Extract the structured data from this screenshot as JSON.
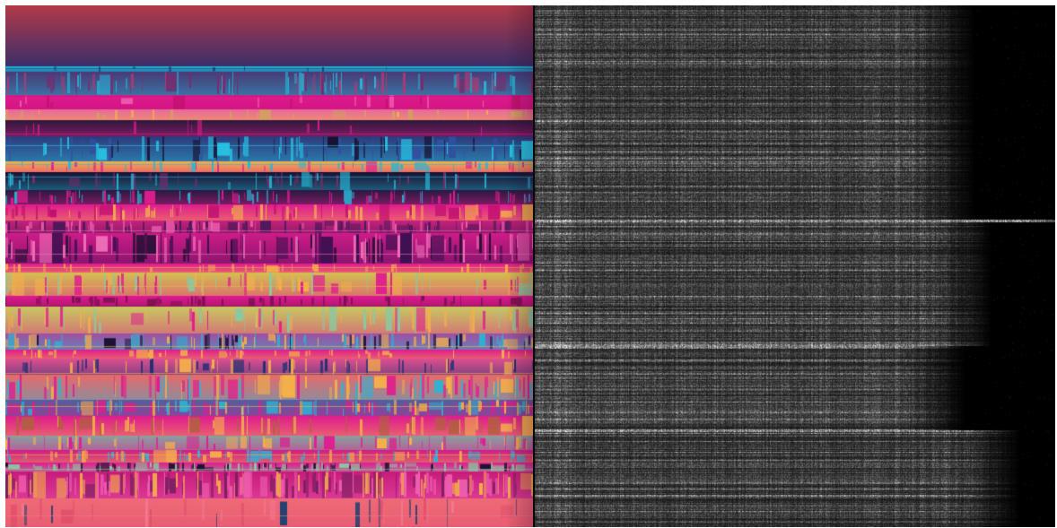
{
  "view": {
    "left_panel": {
      "kind": "feature-color-image",
      "palette": [
        "#b23a48",
        "#2e2a5c",
        "#27b6d6",
        "#e01c8f",
        "#f3b04a",
        "#d4e05a",
        "#8ac8a0",
        "#1a1030",
        "#ff6f6f"
      ]
    },
    "right_panel": {
      "kind": "grayscale-spectrogram",
      "palette": [
        "#000000",
        "#ffffff"
      ]
    }
  }
}
